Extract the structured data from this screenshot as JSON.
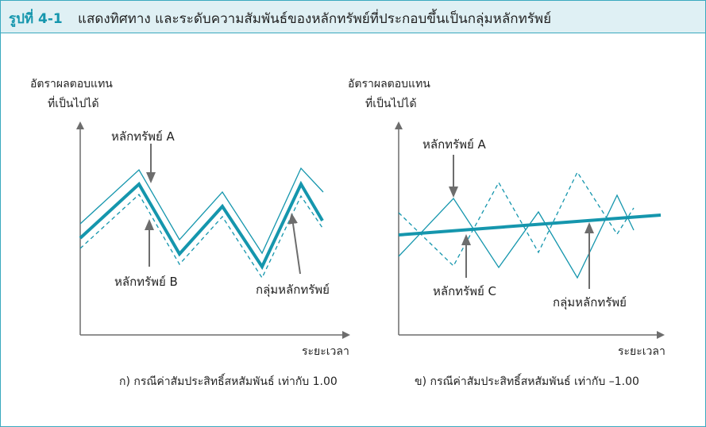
{
  "figure": {
    "label": "รูปที่ 4-1",
    "title": "แสดงทิศทาง และระดับความสัมพันธ์ของหลักทรัพย์ที่ประกอบขึ้นเป็นกลุ่มหลักทรัพย์"
  },
  "colors": {
    "accent": "#1596ad",
    "frame": "#3aa9bf",
    "header_bg": "#dff0f4",
    "arrow": "#6d6d6d"
  },
  "panel_a": {
    "ylabel_line1": "อัตราผลตอบแทน",
    "ylabel_line2": "ที่เป็นไปได้",
    "xlabel": "ระยะเวลา",
    "caption": "ก) กรณีค่าสัมประสิทธิ์สหสัมพันธ์ เท่ากับ 1.00",
    "label_a": "หลักทรัพย์ A",
    "label_b": "หลักทรัพย์ B",
    "label_portfolio": "กลุ่มหลักทรัพย์"
  },
  "panel_b": {
    "ylabel_line1": "อัตราผลตอบแทน",
    "ylabel_line2": "ที่เป็นไปได้",
    "xlabel": "ระยะเวลา",
    "caption": "ข) กรณีค่าสัมประสิทธิ์สหสัมพันธ์ เท่ากับ –1.00",
    "label_a": "หลักทรัพย์ A",
    "label_c": "หลักทรัพย์ C",
    "label_portfolio": "กลุ่มหลักทรัพย์"
  }
}
